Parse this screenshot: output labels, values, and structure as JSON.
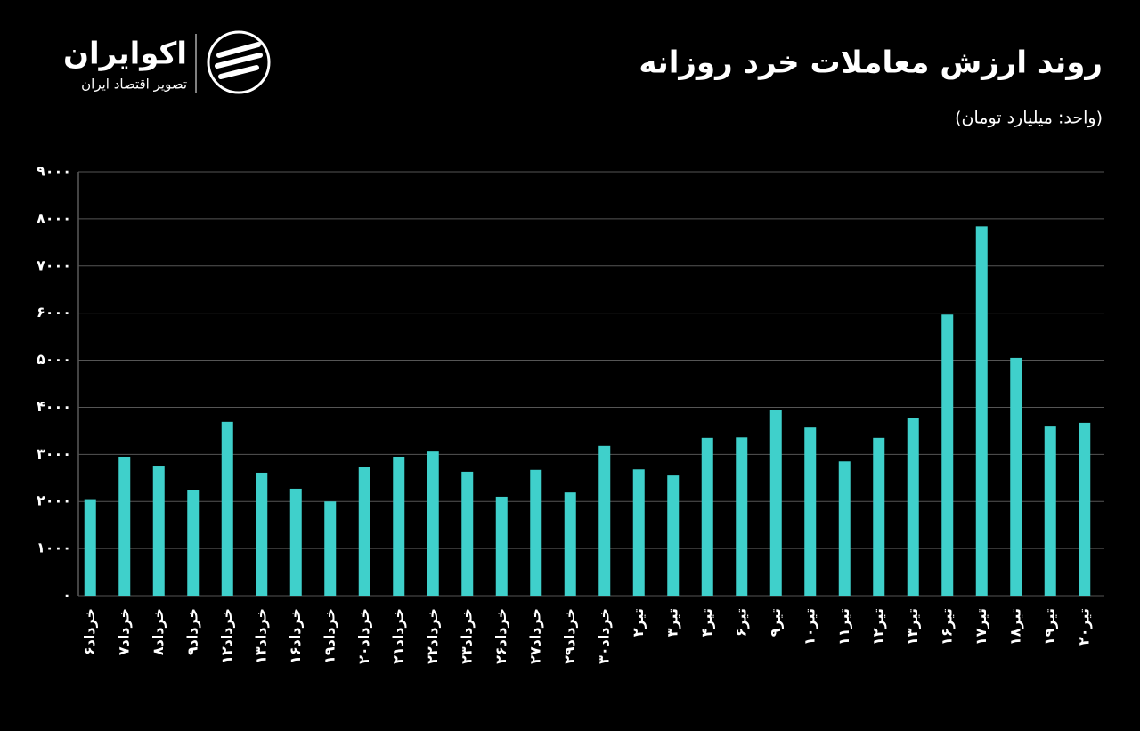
{
  "logo": {
    "name": "اکوایران",
    "tagline": "تصویر اقتصاد ایران"
  },
  "chart_data": {
    "type": "bar",
    "title": "روند ارزش معاملات خرد روزانه",
    "subtitle": "(واحد: میلیارد تومان)",
    "categories": [
      "خرداد۶",
      "خرداد۷",
      "خرداد۸",
      "خرداد۹",
      "خرداد۱۲",
      "خرداد۱۳",
      "خرداد۱۶",
      "خرداد۱۹",
      "خرداد۲۰",
      "خرداد۲۱",
      "خرداد۲۲",
      "خرداد۲۳",
      "خرداد۲۶",
      "خرداد۲۷",
      "خرداد۲۹",
      "خرداد۳۰",
      "تیر۲",
      "تیر۳",
      "تیر۴",
      "تیر۶",
      "تیر۹",
      "تیر۱۰",
      "تیر۱۱",
      "تیر۱۲",
      "تیر۱۳",
      "تیر۱۶",
      "تیر۱۷",
      "تیر۱۸",
      "تیر۱۹",
      "تیر۲۰"
    ],
    "values": [
      2050,
      2950,
      2760,
      2250,
      3690,
      2610,
      2270,
      2000,
      2740,
      2950,
      3060,
      2630,
      2100,
      2670,
      2190,
      3180,
      2680,
      2550,
      3350,
      3360,
      3950,
      3570,
      2850,
      3350,
      3780,
      5970,
      7840,
      5050,
      3590,
      3670
    ],
    "color": "#3fd0cb",
    "ylim": [
      0,
      9000
    ],
    "yticks": [
      {
        "value": 0,
        "label": "۰"
      },
      {
        "value": 1000,
        "label": "۱۰۰۰"
      },
      {
        "value": 2000,
        "label": "۲۰۰۰"
      },
      {
        "value": 3000,
        "label": "۳۰۰۰"
      },
      {
        "value": 4000,
        "label": "۴۰۰۰"
      },
      {
        "value": 5000,
        "label": "۵۰۰۰"
      },
      {
        "value": 6000,
        "label": "۶۰۰۰"
      },
      {
        "value": 7000,
        "label": "۷۰۰۰"
      },
      {
        "value": 8000,
        "label": "۸۰۰۰"
      },
      {
        "value": 9000,
        "label": "۹۰۰۰"
      }
    ],
    "grid": true
  }
}
